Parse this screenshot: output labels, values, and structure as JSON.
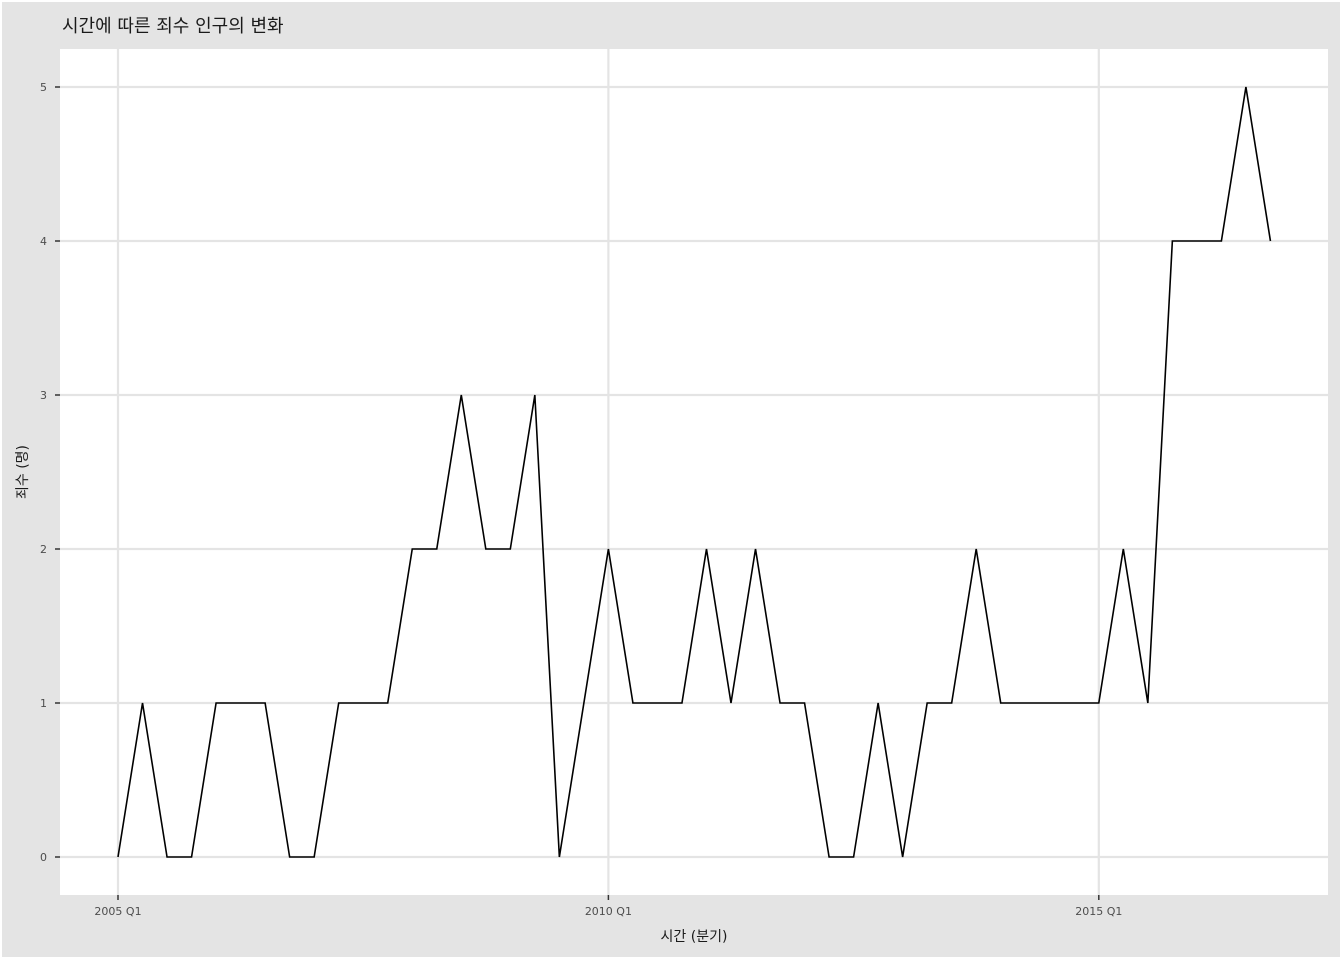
{
  "chart_data": {
    "type": "line",
    "title": "시간에 따른 죄수 인구의 변화",
    "xlabel": "시간 (분기)",
    "ylabel": "죄수 (명)",
    "x_start": "2005 Q1",
    "x_ticks": [
      "2005 Q1",
      "2010 Q1",
      "2015 Q1"
    ],
    "y_ticks": [
      0,
      1,
      2,
      3,
      4,
      5
    ],
    "ylim": [
      0,
      5
    ],
    "grid": true,
    "series": [
      {
        "color": "#000000",
        "x": [
          "2005 Q1",
          "2005 Q2",
          "2005 Q3",
          "2005 Q4",
          "2006 Q1",
          "2006 Q2",
          "2006 Q3",
          "2006 Q4",
          "2007 Q1",
          "2007 Q2",
          "2007 Q3",
          "2007 Q4",
          "2008 Q1",
          "2008 Q2",
          "2008 Q3",
          "2008 Q4",
          "2009 Q1",
          "2009 Q2",
          "2009 Q3",
          "2009 Q4",
          "2010 Q1",
          "2010 Q2",
          "2010 Q3",
          "2010 Q4",
          "2011 Q1",
          "2011 Q2",
          "2011 Q3",
          "2011 Q4",
          "2012 Q1",
          "2012 Q2",
          "2012 Q3",
          "2012 Q4",
          "2013 Q1",
          "2013 Q2",
          "2013 Q3",
          "2013 Q4",
          "2014 Q1",
          "2014 Q2",
          "2014 Q3",
          "2014 Q4",
          "2015 Q1",
          "2015 Q2",
          "2015 Q3",
          "2015 Q4",
          "2016 Q1",
          "2016 Q2",
          "2016 Q3",
          "2016 Q4"
        ],
        "values": [
          0,
          1,
          0,
          0,
          1,
          1,
          1,
          0,
          0,
          1,
          1,
          1,
          2,
          2,
          3,
          2,
          2,
          3,
          0,
          1,
          2,
          1,
          1,
          1,
          2,
          1,
          2,
          1,
          1,
          0,
          0,
          1,
          0,
          1,
          1,
          2,
          1,
          1,
          1,
          1,
          1,
          2,
          1,
          4,
          4,
          4,
          5,
          4
        ]
      }
    ]
  }
}
